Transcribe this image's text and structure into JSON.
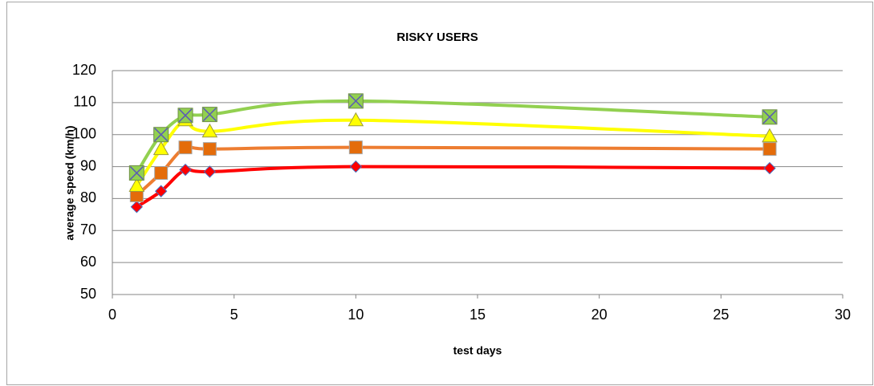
{
  "chart_data": {
    "type": "line",
    "title": "RISKY USERS",
    "x_label": "test days",
    "y_label": "average speed (km/h)",
    "xlim": [
      0,
      30
    ],
    "xticks": [
      0,
      5,
      10,
      15,
      20,
      25,
      30
    ],
    "ylim": [
      50,
      120
    ],
    "yticks": [
      50,
      60,
      70,
      80,
      90,
      100,
      110,
      120
    ],
    "grid": true,
    "smooth": true,
    "x": [
      1,
      2,
      3,
      4,
      10,
      27
    ],
    "series": [
      {
        "color": "#ff0000",
        "marker": "diamond",
        "marker_color": "#ff0000",
        "values": [
          77.4,
          82.3,
          89,
          88.4,
          90,
          89.5
        ]
      },
      {
        "color": "#ed7d31",
        "marker": "square",
        "marker_color": "#e46c0a",
        "values": [
          81,
          88,
          96,
          95.5,
          96,
          95.5
        ]
      },
      {
        "color": "#ffff00",
        "marker": "triangle",
        "marker_color": "#ffff00",
        "values": [
          84,
          95.5,
          104.5,
          101,
          104.5,
          99.5
        ]
      },
      {
        "color": "#92d050",
        "marker": "cross-square",
        "marker_color": "#92d050",
        "values": [
          88,
          100,
          106,
          106.3,
          110.5,
          105.5
        ]
      }
    ]
  }
}
